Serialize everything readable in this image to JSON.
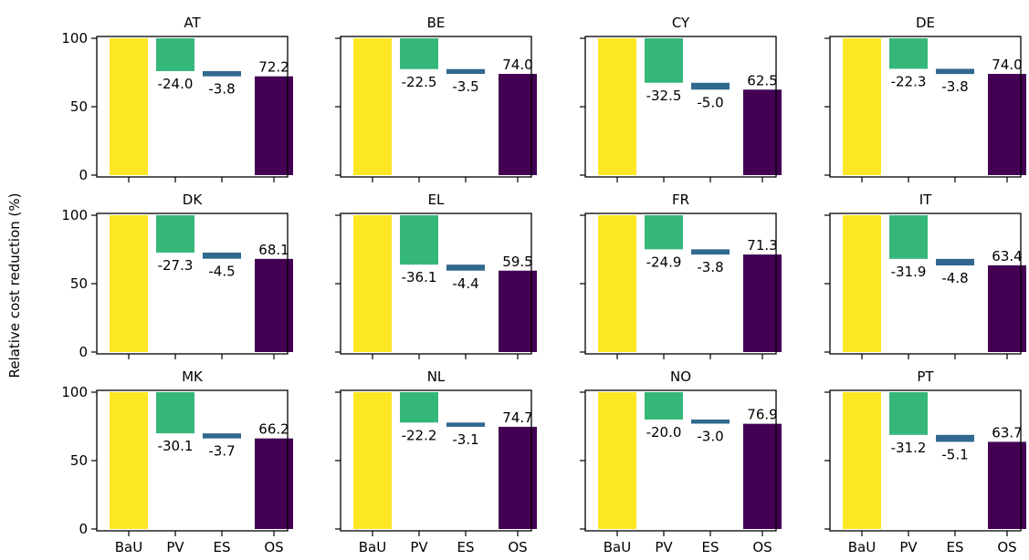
{
  "chart_data": {
    "type": "bar",
    "ylabel": "Relative cost reduction (%)",
    "ylim": [
      0,
      100
    ],
    "yticks": [
      0,
      50,
      100
    ],
    "categories": [
      "BaU",
      "PV",
      "ES",
      "OS"
    ],
    "layout": "grid 3 rows x 4 columns, shared axes",
    "colors": {
      "BaU": "#fde725",
      "PV": "#35b779",
      "ES": "#31688e",
      "OS": "#440154"
    },
    "panels": [
      {
        "title": "AT",
        "bau": 100,
        "pv": -24.0,
        "es": -3.8,
        "os": 72.2,
        "labels": {
          "pv": "-24.0",
          "es": "-3.8",
          "os": "72.2"
        }
      },
      {
        "title": "BE",
        "bau": 100,
        "pv": -22.5,
        "es": -3.5,
        "os": 74.0,
        "labels": {
          "pv": "-22.5",
          "es": "-3.5",
          "os": "74.0"
        }
      },
      {
        "title": "CY",
        "bau": 100,
        "pv": -32.5,
        "es": -5.0,
        "os": 62.5,
        "labels": {
          "pv": "-32.5",
          "es": "-5.0",
          "os": "62.5"
        }
      },
      {
        "title": "DE",
        "bau": 100,
        "pv": -22.3,
        "es": -3.8,
        "os": 74.0,
        "labels": {
          "pv": "-22.3",
          "es": "-3.8",
          "os": "74.0"
        }
      },
      {
        "title": "DK",
        "bau": 100,
        "pv": -27.3,
        "es": -4.5,
        "os": 68.1,
        "labels": {
          "pv": "-27.3",
          "es": "-4.5",
          "os": "68.1"
        }
      },
      {
        "title": "EL",
        "bau": 100,
        "pv": -36.1,
        "es": -4.4,
        "os": 59.5,
        "labels": {
          "pv": "-36.1",
          "es": "-4.4",
          "os": "59.5"
        }
      },
      {
        "title": "FR",
        "bau": 100,
        "pv": -24.9,
        "es": -3.8,
        "os": 71.3,
        "labels": {
          "pv": "-24.9",
          "es": "-3.8",
          "os": "71.3"
        }
      },
      {
        "title": "IT",
        "bau": 100,
        "pv": -31.9,
        "es": -4.8,
        "os": 63.4,
        "labels": {
          "pv": "-31.9",
          "es": "-4.8",
          "os": "63.4"
        }
      },
      {
        "title": "MK",
        "bau": 100,
        "pv": -30.1,
        "es": -3.7,
        "os": 66.2,
        "labels": {
          "pv": "-30.1",
          "es": "-3.7",
          "os": "66.2"
        }
      },
      {
        "title": "NL",
        "bau": 100,
        "pv": -22.2,
        "es": -3.1,
        "os": 74.7,
        "labels": {
          "pv": "-22.2",
          "es": "-3.1",
          "os": "74.7"
        }
      },
      {
        "title": "NO",
        "bau": 100,
        "pv": -20.0,
        "es": -3.0,
        "os": 76.9,
        "labels": {
          "pv": "-20.0",
          "es": "-3.0",
          "os": "76.9"
        }
      },
      {
        "title": "PT",
        "bau": 100,
        "pv": -31.2,
        "es": -5.1,
        "os": 63.7,
        "labels": {
          "pv": "-31.2",
          "es": "-5.1",
          "os": "63.7"
        }
      }
    ]
  }
}
